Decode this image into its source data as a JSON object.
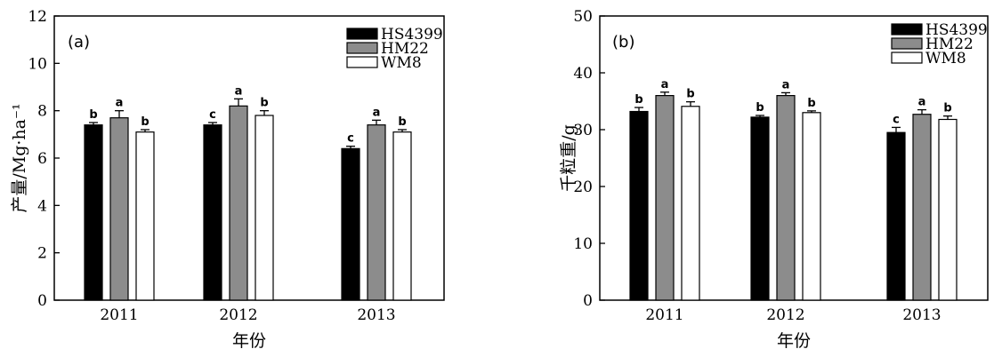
{
  "legend_entries": [
    {
      "name": "HS4399",
      "fill": "#000000"
    },
    {
      "name": "HM22",
      "fill": "#8c8c8c"
    },
    {
      "name": "WM8",
      "fill": "#ffffff"
    }
  ],
  "chart_data": [
    {
      "type": "bar",
      "panel_label": "(a)",
      "xlabel": "年份",
      "ylabel": "产量/Mg·ha⁻¹",
      "categories": [
        "2011",
        "2012",
        "2013"
      ],
      "ylim": [
        0,
        12
      ],
      "yticks": [
        0,
        2,
        4,
        6,
        8,
        10,
        12
      ],
      "legend_position": "top-right",
      "grid": false,
      "series": [
        {
          "name": "HS4399",
          "values": [
            7.4,
            7.4,
            6.4
          ],
          "errors": [
            0.1,
            0.1,
            0.1
          ],
          "letters": [
            "b",
            "c",
            "c"
          ]
        },
        {
          "name": "HM22",
          "values": [
            7.7,
            8.2,
            7.4
          ],
          "errors": [
            0.3,
            0.3,
            0.2
          ],
          "letters": [
            "a",
            "a",
            "a"
          ]
        },
        {
          "name": "WM8",
          "values": [
            7.1,
            7.8,
            7.1
          ],
          "errors": [
            0.1,
            0.2,
            0.1
          ],
          "letters": [
            "b",
            "b",
            "b"
          ]
        }
      ]
    },
    {
      "type": "bar",
      "panel_label": "(b)",
      "xlabel": "年份",
      "ylabel": "千粒重/g",
      "categories": [
        "2011",
        "2012",
        "2013"
      ],
      "ylim": [
        0,
        50
      ],
      "yticks": [
        0,
        10,
        20,
        30,
        40,
        50
      ],
      "legend_position": "top-right",
      "grid": false,
      "series": [
        {
          "name": "HS4399",
          "values": [
            33.2,
            32.2,
            29.5
          ],
          "errors": [
            0.7,
            0.3,
            0.9
          ],
          "letters": [
            "b",
            "b",
            "c"
          ]
        },
        {
          "name": "HM22",
          "values": [
            36.0,
            36.0,
            32.7
          ],
          "errors": [
            0.6,
            0.5,
            0.8
          ],
          "letters": [
            "a",
            "a",
            "a"
          ]
        },
        {
          "name": "WM8",
          "values": [
            34.1,
            33.0,
            31.8
          ],
          "errors": [
            0.8,
            0.3,
            0.6
          ],
          "letters": [
            "b",
            "b",
            "b"
          ]
        }
      ]
    }
  ]
}
